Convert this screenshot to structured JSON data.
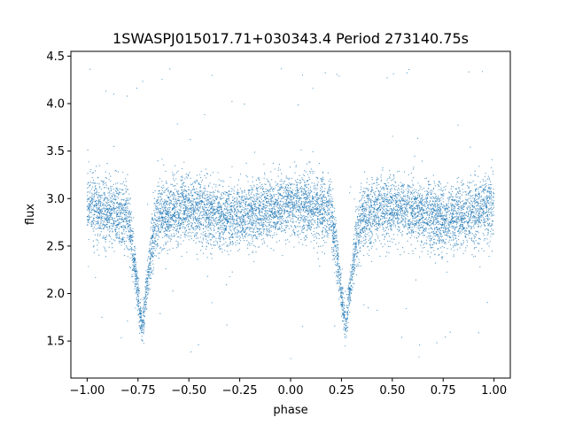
{
  "chart_data": {
    "type": "scatter",
    "title": "1SWASPJ015017.71+030343.4 Period 273140.75s",
    "xlabel": "phase",
    "ylabel": "flux",
    "xlim": [
      -1.08,
      1.08
    ],
    "ylim": [
      1.11,
      4.55
    ],
    "x_ticks": [
      -1.0,
      -0.75,
      -0.5,
      -0.25,
      0.0,
      0.25,
      0.5,
      0.75,
      1.0
    ],
    "x_tick_labels": [
      "−1.00",
      "−0.75",
      "−0.50",
      "−0.25",
      "0.00",
      "0.25",
      "0.50",
      "0.75",
      "1.00"
    ],
    "y_ticks": [
      1.5,
      2.0,
      2.5,
      3.0,
      3.5,
      4.0,
      4.5
    ],
    "y_tick_labels": [
      "1.5",
      "2.0",
      "2.5",
      "3.0",
      "3.5",
      "4.0",
      "4.5"
    ],
    "grid": false,
    "marker_color": "#1f77b4",
    "series": [
      {
        "phase_range": [
          -1.0,
          1.0
        ],
        "baseline_flux": 2.88,
        "scatter_sigma": 0.17,
        "eclipses": [
          {
            "phase_center": -0.73,
            "min_flux": 1.62,
            "half_width": 0.05
          },
          {
            "phase_center": 0.27,
            "min_flux": 1.62,
            "half_width": 0.05
          }
        ],
        "profile": {
          "phase": [
            -1.0,
            -0.9,
            -0.8,
            -0.78,
            -0.75,
            -0.73,
            -0.71,
            -0.68,
            -0.65,
            -0.5,
            -0.35,
            -0.25,
            -0.1,
            0.0,
            0.1,
            0.2,
            0.22,
            0.25,
            0.27,
            0.29,
            0.32,
            0.35,
            0.5,
            0.65,
            0.75,
            0.9,
            1.0
          ],
          "flux": [
            2.92,
            2.88,
            2.8,
            2.55,
            2.0,
            1.62,
            2.0,
            2.55,
            2.82,
            2.9,
            2.82,
            2.8,
            2.88,
            2.93,
            2.92,
            2.85,
            2.55,
            2.0,
            1.62,
            2.0,
            2.55,
            2.82,
            2.9,
            2.85,
            2.78,
            2.86,
            2.92
          ]
        }
      }
    ]
  }
}
